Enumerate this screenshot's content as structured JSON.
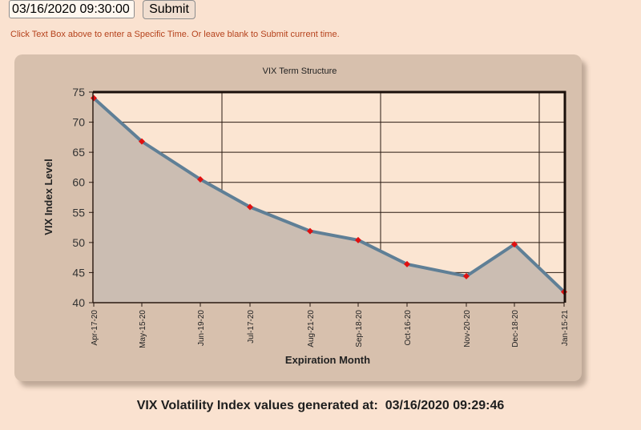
{
  "form": {
    "time_value": "03/16/2020 09:30:00",
    "submit_label": "Submit",
    "hint": "Click Text Box above to enter a Specific Time. Or leave blank to Submit current time."
  },
  "colors": {
    "page_bg": "#fae2d0",
    "panel_bg": "#d7c0ad",
    "plot_bg": "#fbe5d2",
    "area_fill": "#cbbdb2",
    "line": "#5f7f96",
    "marker": "#e01010",
    "hint_text": "#b5421c"
  },
  "chart_data": {
    "type": "area",
    "title": "VIX Term Structure",
    "xlabel": "Expiration Month",
    "ylabel": "VIX Index Level",
    "ylim": [
      40,
      75
    ],
    "yticks": [
      40,
      45,
      50,
      55,
      60,
      65,
      70,
      75
    ],
    "categories": [
      "Apr-17-20",
      "May-15-20",
      "Jun-19-20",
      "Jul-17-20",
      "Aug-21-20",
      "Sep-18-20",
      "Oct-16-20",
      "Nov-20-20",
      "Dec-18-20",
      "Jan-15-21"
    ],
    "values": [
      74.0,
      66.8,
      60.5,
      55.9,
      51.9,
      50.4,
      46.4,
      44.4,
      49.7,
      41.8
    ],
    "grid": true,
    "markers": true
  },
  "footer": {
    "label": "VIX Volatility Index values generated at:",
    "timestamp": "03/16/2020 09:29:46"
  }
}
